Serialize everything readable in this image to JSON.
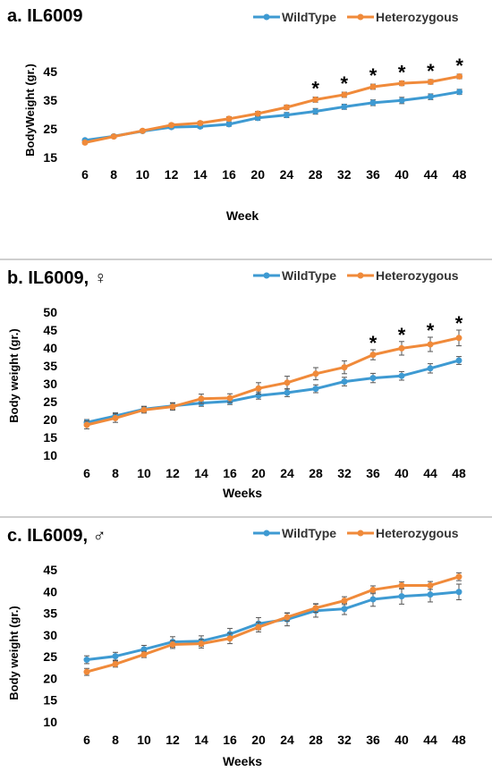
{
  "colors": {
    "wildtype": "#3E9AD2",
    "heterozygous": "#F08A3A",
    "text": "#000000",
    "separator": "#cfcfcf",
    "error_bar": "#555555"
  },
  "chart_data": [
    {
      "type": "line",
      "title": "a. IL6009",
      "xlabel": "Week",
      "ylabel": "BodyWeight (gr.)",
      "categories": [
        "6",
        "8",
        "10",
        "12",
        "14",
        "16",
        "20",
        "24",
        "28",
        "32",
        "36",
        "40",
        "44",
        "48"
      ],
      "ylim": [
        15,
        45
      ],
      "yticks": [
        15,
        25,
        35,
        45
      ],
      "grid": false,
      "legend": "top-right",
      "series": [
        {
          "name": "WildType",
          "values": [
            21,
            22.4,
            24.2,
            25.6,
            25.8,
            26.6,
            28.8,
            29.8,
            31.1,
            32.7,
            34.1,
            34.9,
            36.2,
            37.9
          ],
          "errors": [
            0.5,
            0.5,
            0.5,
            0.6,
            0.6,
            0.7,
            0.8,
            0.9,
            1.0,
            0.9,
            1.0,
            1.1,
            1.0,
            0.9
          ]
        },
        {
          "name": "Heterozygous",
          "values": [
            20.2,
            22.3,
            24.3,
            26.3,
            27,
            28.5,
            30.3,
            32.5,
            35.2,
            36.9,
            39.7,
            40.9,
            41.4,
            43.3
          ],
          "errors": [
            0.5,
            0.5,
            0.5,
            0.6,
            0.6,
            0.7,
            0.8,
            0.8,
            0.9,
            0.9,
            0.9,
            0.8,
            0.8,
            0.8
          ]
        }
      ],
      "significance": [
        "",
        "",
        "",
        "",
        "",
        "",
        "",
        "",
        "*",
        "*",
        "*",
        "*",
        "*",
        "*"
      ]
    },
    {
      "type": "line",
      "title": "b. IL6009, ♀",
      "xlabel": "Weeks",
      "ylabel": "Body weight (gr.)",
      "categories": [
        "6",
        "8",
        "10",
        "12",
        "14",
        "16",
        "20",
        "24",
        "28",
        "32",
        "36",
        "40",
        "44",
        "48"
      ],
      "ylim": [
        10,
        50
      ],
      "yticks": [
        10,
        15,
        20,
        25,
        30,
        35,
        40,
        45,
        50
      ],
      "grid": false,
      "legend": "top-right",
      "series": [
        {
          "name": "WildType",
          "values": [
            19.2,
            21,
            22.9,
            23.8,
            24.6,
            25.1,
            26.7,
            27.5,
            28.6,
            30.6,
            31.6,
            32.2,
            34.3,
            36.5
          ],
          "errors": [
            0.8,
            0.9,
            0.8,
            0.9,
            0.9,
            0.9,
            1.0,
            1.1,
            1.1,
            1.2,
            1.3,
            1.2,
            1.3,
            1.1
          ]
        },
        {
          "name": "Heterozygous",
          "values": [
            18.5,
            20.4,
            22.7,
            23.6,
            25.8,
            26,
            28.7,
            30.3,
            32.8,
            34.6,
            38.1,
            39.9,
            41,
            42.8
          ],
          "errors": [
            1.1,
            1.2,
            0.9,
            1.0,
            1.3,
            1.2,
            1.6,
            1.8,
            1.7,
            1.8,
            1.4,
            1.9,
            2.0,
            2.2
          ]
        }
      ],
      "significance": [
        "",
        "",
        "",
        "",
        "",
        "",
        "",
        "",
        "",
        "",
        "*",
        "*",
        "*",
        "*"
      ]
    },
    {
      "type": "line",
      "title": "c. IL6009, ♂",
      "xlabel": "Weeks",
      "ylabel": "Body weight (gr.)",
      "categories": [
        "6",
        "8",
        "10",
        "12",
        "14",
        "16",
        "20",
        "24",
        "28",
        "32",
        "36",
        "40",
        "44",
        "48"
      ],
      "ylim": [
        10,
        45
      ],
      "yticks": [
        10,
        15,
        20,
        25,
        30,
        35,
        40,
        45
      ],
      "grid": false,
      "legend": "top-right",
      "series": [
        {
          "name": "WildType",
          "values": [
            24.3,
            25.1,
            26.7,
            28.4,
            28.6,
            30.2,
            32.6,
            33.6,
            35.6,
            36,
            38.2,
            38.9,
            39.3,
            39.9
          ],
          "errors": [
            0.9,
            0.9,
            0.9,
            1.2,
            1.2,
            1.3,
            1.4,
            1.5,
            1.5,
            1.3,
            1.6,
            1.8,
            1.7,
            1.8
          ]
        },
        {
          "name": "Heterozygous",
          "values": [
            21.5,
            23.3,
            25.5,
            27.8,
            28,
            29.2,
            31.8,
            34.1,
            36.2,
            37.9,
            40.4,
            41.4,
            41.4,
            43.4
          ],
          "errors": [
            0.8,
            0.7,
            0.7,
            0.9,
            1.0,
            1.2,
            1.1,
            0.9,
            1.0,
            0.9,
            0.9,
            0.8,
            0.9,
            0.9
          ]
        }
      ],
      "significance": [
        "",
        "",
        "",
        "",
        "",
        "",
        "",
        "",
        "",
        "",
        "",
        "",
        "",
        ""
      ]
    }
  ]
}
